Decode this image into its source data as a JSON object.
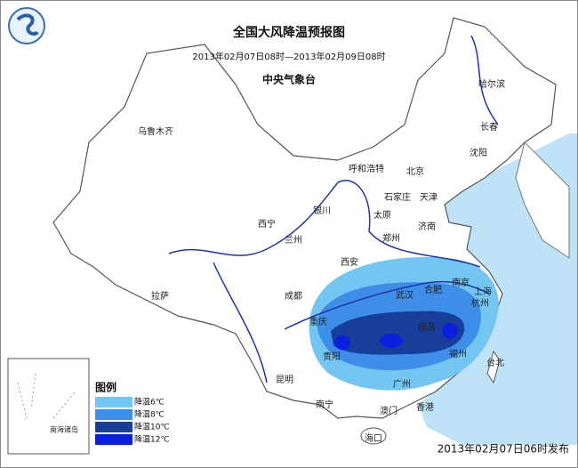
{
  "header": {
    "title": "全国大风降温预报图",
    "period": "2013年02月07日08时—2013年02月09日08时",
    "issuer": "中央气象台"
  },
  "cities": [
    "乌鲁木齐",
    "哈尔滨",
    "长春",
    "沈阳",
    "呼和浩特",
    "北京",
    "天津",
    "石家庄",
    "太原",
    "银川",
    "西宁",
    "兰州",
    "济南",
    "郑州",
    "西安",
    "拉萨",
    "成都",
    "武汉",
    "合肥",
    "南京",
    "上海",
    "杭州",
    "重庆",
    "南昌",
    "贵阳",
    "福州",
    "台北",
    "昆明",
    "南宁",
    "广州",
    "澳门",
    "香港",
    "海口"
  ],
  "inset_label": "南海诸岛",
  "legend": {
    "title": "图例",
    "items": [
      {
        "label": "降温6℃",
        "color": "#74c6f2"
      },
      {
        "label": "降温8℃",
        "color": "#3d8ee8"
      },
      {
        "label": "降温10℃",
        "color": "#173f99"
      },
      {
        "label": "降温12℃",
        "color": "#0a1fe0"
      }
    ]
  },
  "footer": {
    "issued": "2013年02月07日06时发布"
  }
}
